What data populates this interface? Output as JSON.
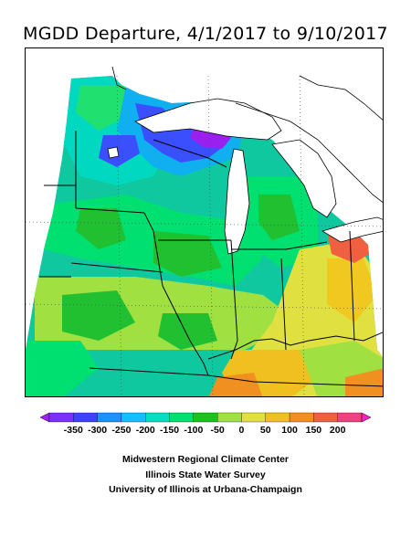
{
  "title": "MGDD Departure, 4/1/2017 to 9/10/2017",
  "legend": {
    "ticks": [
      "-350",
      "-300",
      "-250",
      "-200",
      "-150",
      "-100",
      "-50",
      "0",
      "50",
      "100",
      "150",
      "200"
    ],
    "colors": [
      "#a020f0",
      "#7a30ff",
      "#4040ff",
      "#2090ff",
      "#10c0ff",
      "#00e0c0",
      "#00e070",
      "#20c020",
      "#a0e040",
      "#e0e040",
      "#f0c020",
      "#f09020",
      "#f06040",
      "#f04080",
      "#ff20c0"
    ]
  },
  "credits": [
    "Midwestern Regional Climate Center",
    "Illinois State Water Survey",
    "University of Illinois at Urbana-Champaign"
  ]
}
